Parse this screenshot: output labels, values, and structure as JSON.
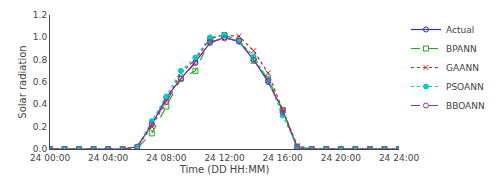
{
  "chart_data": {
    "type": "line",
    "xlabel": "Time (DD HH:MM)",
    "ylabel": "Solar radiation",
    "x": [
      0,
      1,
      2,
      3,
      4,
      5,
      6,
      7,
      8,
      9,
      10,
      11,
      12,
      13,
      14,
      15,
      16,
      17,
      18,
      19,
      20,
      21,
      22,
      23,
      24
    ],
    "xlim": [
      0,
      24
    ],
    "xticks": [
      {
        "value": 0,
        "label": "24 00:00"
      },
      {
        "value": 4,
        "label": "24 04:00"
      },
      {
        "value": 8,
        "label": "24 08:00"
      },
      {
        "value": 12,
        "label": "24 12:00"
      },
      {
        "value": 16,
        "label": "24 16:00"
      },
      {
        "value": 20,
        "label": "24 20:00"
      },
      {
        "value": 24,
        "label": "24 24:00"
      }
    ],
    "ylim": [
      0,
      1.2
    ],
    "yticks": [
      {
        "value": 0,
        "label": "0.0"
      },
      0.2,
      0.4,
      0.6,
      0.8,
      {
        "value": 1.0,
        "label": "1.0"
      },
      1.2
    ],
    "grid": false,
    "legend": "upper right",
    "series": [
      {
        "name": "Actual",
        "color": "#3333aa",
        "marker": "circle-open",
        "line_style": "solid",
        "values": [
          0.0,
          0.0,
          0.0,
          0.0,
          0.0,
          0.0,
          0.02,
          0.22,
          0.46,
          0.63,
          0.78,
          0.95,
          1.0,
          0.96,
          0.8,
          0.6,
          0.35,
          0.01,
          0.0,
          0.0,
          0.0,
          0.0,
          0.0,
          0.0,
          0.0
        ]
      },
      {
        "name": "BPANN",
        "color": "#22aa22",
        "marker": "square-open",
        "line_style": "dash",
        "values": [
          0.0,
          0.0,
          0.0,
          0.0,
          0.0,
          0.0,
          0.01,
          0.14,
          0.38,
          0.63,
          0.7,
          0.98,
          1.02,
          0.97,
          0.79,
          0.63,
          0.35,
          0.02,
          0.0,
          0.0,
          0.0,
          0.0,
          0.0,
          0.0,
          0.0
        ]
      },
      {
        "name": "GAANN",
        "color": "#cc2222",
        "marker": "x-thin-open",
        "line_style": "dot",
        "values": [
          0.0,
          0.0,
          0.0,
          0.0,
          0.0,
          0.0,
          0.02,
          0.2,
          0.43,
          0.68,
          0.8,
          0.99,
          1.02,
          1.01,
          0.88,
          0.68,
          0.35,
          0.03,
          0.0,
          0.0,
          0.0,
          0.0,
          0.0,
          0.0,
          0.0
        ]
      },
      {
        "name": "PSOANN",
        "color": "#00cccc",
        "marker": "circle",
        "line_style": "dot",
        "values": [
          0.0,
          0.0,
          0.0,
          0.0,
          0.0,
          0.0,
          0.02,
          0.25,
          0.47,
          0.7,
          0.82,
          1.0,
          1.02,
          0.97,
          0.83,
          0.62,
          0.3,
          0.02,
          0.0,
          0.0,
          0.0,
          0.0,
          0.0,
          0.0,
          0.0
        ]
      },
      {
        "name": "BBOANN",
        "color": "#993399",
        "marker": "circle-open",
        "line_style": "dash",
        "values": [
          0.0,
          0.0,
          0.0,
          0.0,
          0.0,
          0.0,
          0.02,
          0.22,
          0.42,
          0.63,
          0.77,
          0.96,
          0.99,
          0.97,
          0.8,
          0.61,
          0.33,
          0.02,
          0.0,
          0.0,
          0.0,
          0.0,
          0.0,
          0.0,
          0.0
        ]
      }
    ]
  }
}
